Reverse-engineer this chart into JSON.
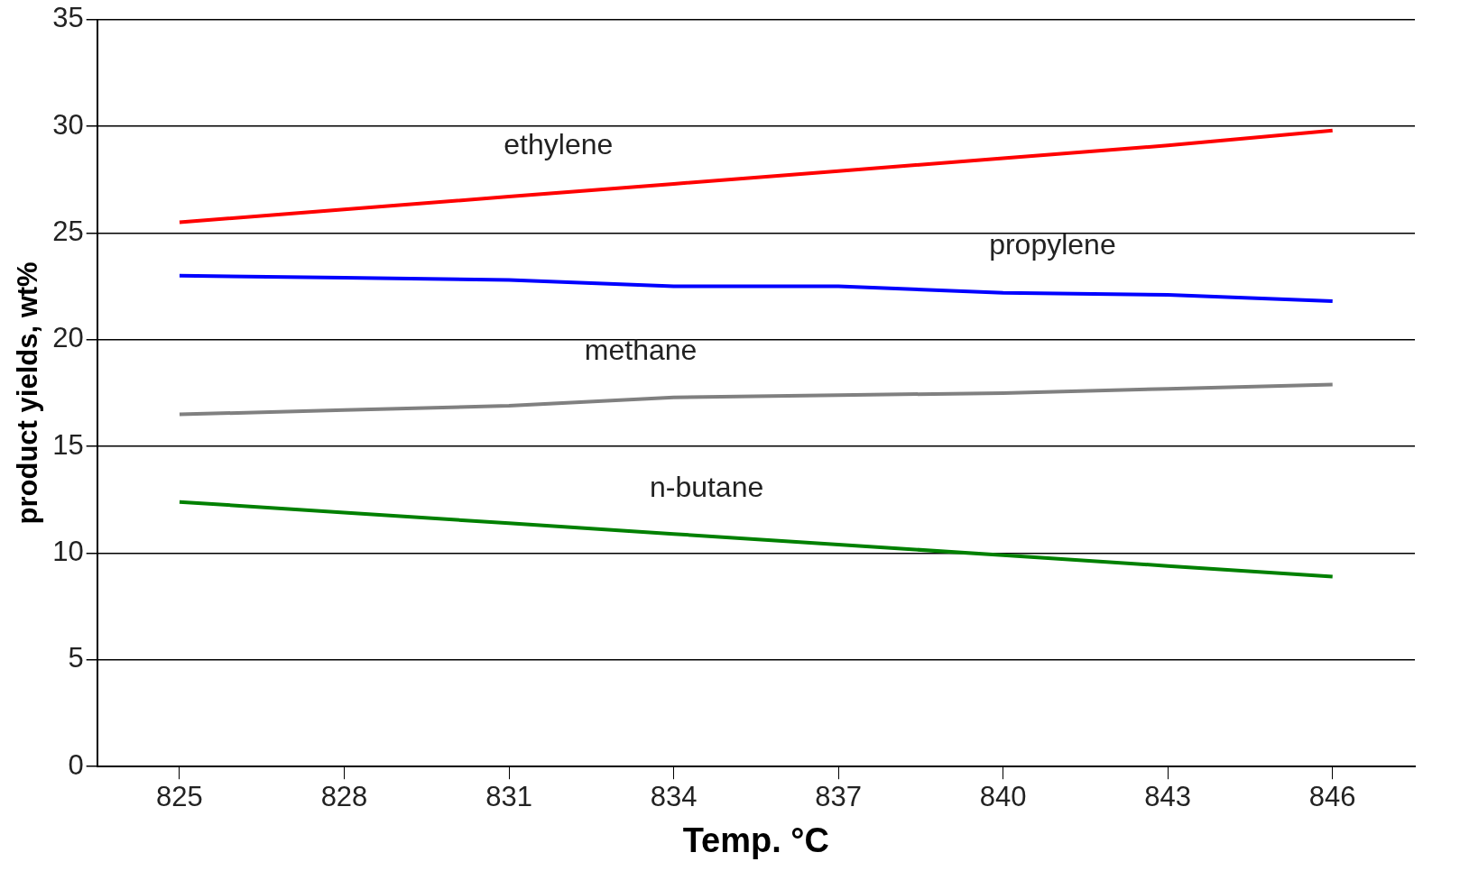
{
  "chart_data": {
    "type": "line",
    "xlabel": "Temp. °C",
    "ylabel": "product yields, wt%",
    "categories": [
      "825",
      "828",
      "831",
      "834",
      "837",
      "840",
      "843",
      "846"
    ],
    "series": [
      {
        "name": "ethylene",
        "color": "#ff0000",
        "values": [
          25.5,
          26.1,
          26.7,
          27.3,
          27.9,
          28.5,
          29.1,
          29.8
        ]
      },
      {
        "name": "propylene",
        "color": "#0000ff",
        "values": [
          23.0,
          22.9,
          22.8,
          22.5,
          22.5,
          22.2,
          22.1,
          21.8
        ]
      },
      {
        "name": "methane",
        "color": "#808080",
        "values": [
          16.5,
          16.7,
          16.9,
          17.3,
          17.4,
          17.5,
          17.7,
          17.9
        ]
      },
      {
        "name": "n-butane",
        "color": "#008000",
        "values": [
          12.4,
          11.9,
          11.4,
          10.9,
          10.4,
          9.9,
          9.4,
          8.9
        ]
      }
    ],
    "ylim": [
      0,
      35
    ],
    "yticks": [
      0,
      5,
      10,
      15,
      20,
      25,
      30,
      35
    ],
    "grid": "y",
    "legend": false,
    "marker": "none",
    "line_style": "solid"
  }
}
